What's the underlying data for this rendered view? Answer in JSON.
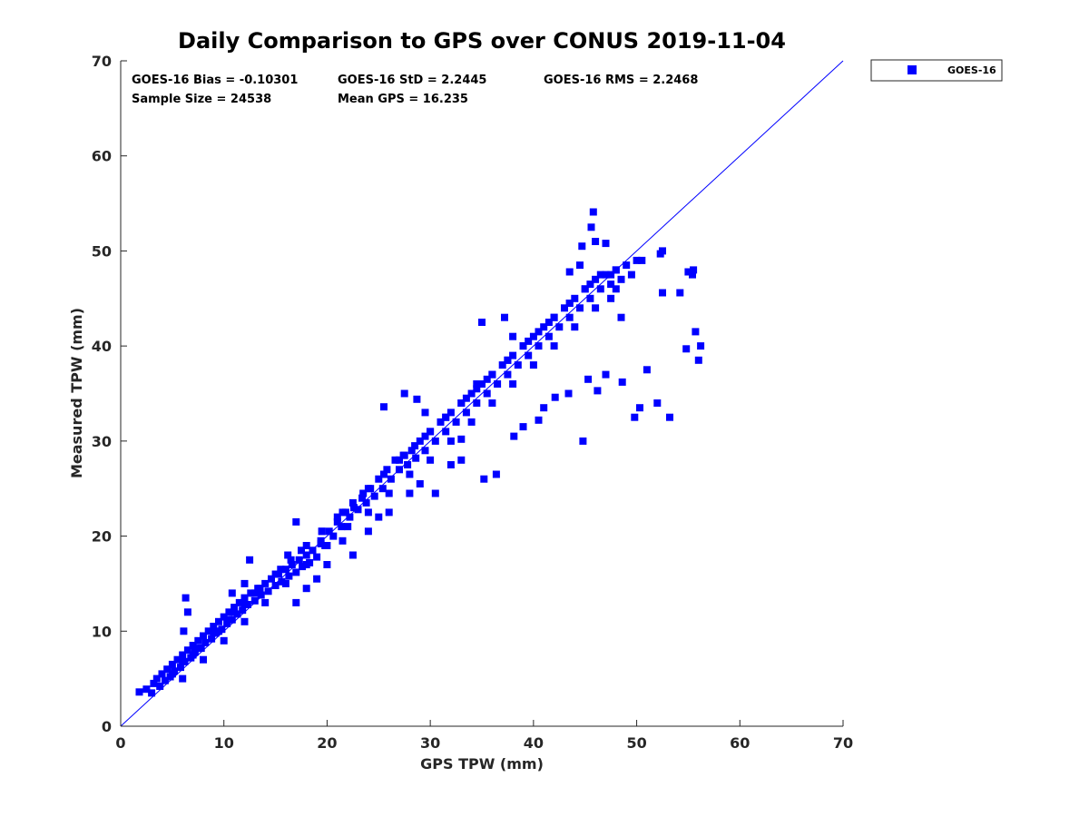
{
  "chart_data": {
    "type": "scatter",
    "title": "Daily Comparison to GPS over CONUS 2019-11-04",
    "xlabel": "GPS TPW (mm)",
    "ylabel": "Measured TPW (mm)",
    "xlim": [
      0,
      70
    ],
    "ylim": [
      0,
      70
    ],
    "xticks": [
      0,
      10,
      20,
      30,
      40,
      50,
      60,
      70
    ],
    "yticks": [
      0,
      10,
      20,
      30,
      40,
      50,
      60,
      70
    ],
    "grid": false,
    "legend": {
      "placement": "outside-top-right",
      "entries": [
        "GOES-16"
      ]
    },
    "reference_line": {
      "from": [
        0,
        0
      ],
      "to": [
        70,
        70
      ],
      "color": "#0000ff",
      "label": "1:1 line"
    },
    "stats": {
      "bias": "GOES-16 Bias = -0.10301",
      "std": "GOES-16 StD = 2.2445",
      "rms": "GOES-16 RMS = 2.2468",
      "sample_size": "Sample Size = 24538",
      "mean_gps": "Mean GPS = 16.235"
    },
    "series": [
      {
        "name": "GOES-16",
        "color": "#0000ff",
        "marker": "square",
        "x": [
          1.8,
          2.5,
          3.0,
          3.2,
          3.5,
          3.8,
          4.0,
          4.3,
          4.5,
          4.8,
          5.0,
          5.2,
          5.5,
          5.8,
          6.0,
          6.2,
          6.5,
          6.8,
          7.0,
          7.2,
          7.5,
          7.8,
          8.0,
          8.2,
          8.5,
          8.8,
          9.0,
          9.2,
          9.5,
          9.8,
          10.0,
          10.3,
          10.5,
          10.8,
          11.0,
          11.3,
          11.5,
          11.8,
          12.0,
          12.3,
          12.6,
          13.0,
          13.3,
          13.6,
          14.0,
          14.3,
          14.6,
          15.0,
          15.3,
          15.6,
          16.0,
          16.3,
          16.6,
          17.0,
          17.3,
          17.6,
          18.0,
          18.3,
          18.6,
          19.0,
          19.4,
          19.8,
          20.2,
          20.6,
          21.0,
          21.4,
          21.8,
          22.2,
          22.6,
          23.0,
          23.4,
          23.8,
          24.2,
          24.6,
          25.0,
          25.4,
          25.8,
          26.2,
          26.6,
          27.0,
          27.4,
          27.8,
          28.2,
          28.6,
          29.0,
          29.5,
          30.0,
          30.5,
          31.0,
          31.5,
          32.0,
          32.5,
          33.0,
          33.5,
          34.0,
          34.5,
          35.0,
          35.5,
          36.0,
          36.5,
          37.0,
          37.5,
          38.0,
          38.5,
          39.0,
          39.5,
          40.0,
          40.5,
          41.0,
          41.5,
          42.0,
          42.5,
          43.0,
          43.5,
          44.0,
          44.5,
          45.0,
          45.5,
          46.0,
          46.5,
          47.0,
          47.5,
          48.0,
          48.5,
          49.0,
          49.5,
          50.0,
          5.0,
          6.0,
          7.5,
          9.0,
          10.5,
          12.0,
          13.5,
          15.0,
          16.5,
          18.0,
          19.5,
          21.0,
          22.5,
          24.0,
          25.5,
          27.0,
          28.5,
          30.0,
          31.5,
          33.0,
          34.5,
          36.0,
          37.5,
          39.0,
          40.5,
          42.0,
          43.5,
          45.0,
          46.5,
          48.0,
          6.0,
          8.0,
          10.0,
          12.0,
          14.0,
          16.0,
          18.0,
          20.0,
          22.0,
          24.0,
          26.0,
          28.0,
          30.0,
          32.0,
          34.0,
          36.0,
          38.0,
          40.0,
          42.0,
          44.0,
          46.0,
          48.0,
          7.0,
          9.5,
          11.0,
          13.0,
          15.5,
          17.5,
          19.5,
          21.5,
          23.5,
          25.5,
          27.5,
          29.5,
          31.5,
          33.5,
          35.5,
          37.5,
          39.5,
          41.5,
          43.5,
          45.5,
          47.5,
          6.3,
          6.1,
          6.5,
          10.8,
          12.0,
          12.5,
          19.4,
          17.0,
          16.2,
          25.5,
          27.5,
          28.7,
          29.5,
          33.0,
          34.5,
          35.0,
          37.2,
          38.0,
          40.5,
          43.5,
          44.5,
          45.6,
          46.0,
          45.8,
          44.7,
          47.0,
          47.5,
          48.5,
          50.5,
          52.3,
          52.5,
          55.0,
          55.5,
          55.7,
          56.2,
          54.8,
          56.0,
          55.4,
          54.2,
          52.0,
          50.3,
          49.8,
          53.2,
          52.5,
          51.0,
          48.6,
          47.0,
          46.2,
          45.3,
          44.8,
          43.4,
          42.1,
          41.0,
          39.0,
          38.1,
          36.4,
          35.2,
          33.0,
          32.0,
          30.5,
          29.0,
          28.0,
          26.0,
          25.0,
          24.0,
          22.5,
          21.5,
          20.0,
          19.0,
          18.0,
          17.0
        ],
        "y": [
          3.6,
          3.9,
          3.5,
          4.5,
          5.0,
          4.2,
          5.5,
          4.8,
          6.0,
          5.2,
          6.5,
          5.8,
          7.0,
          6.2,
          7.5,
          6.8,
          8.0,
          7.2,
          8.5,
          7.8,
          9.0,
          8.2,
          9.5,
          8.8,
          10.0,
          9.2,
          10.5,
          9.8,
          11.0,
          10.2,
          11.5,
          10.8,
          12.0,
          11.2,
          12.5,
          11.8,
          13.0,
          12.2,
          13.5,
          12.8,
          14.0,
          13.2,
          14.5,
          13.8,
          15.0,
          14.2,
          15.5,
          14.8,
          16.0,
          15.2,
          16.5,
          15.8,
          17.0,
          16.2,
          17.5,
          16.8,
          18.0,
          17.2,
          18.5,
          17.8,
          19.5,
          19.0,
          20.5,
          20.0,
          21.5,
          21.0,
          22.5,
          22.0,
          23.0,
          22.8,
          24.0,
          23.5,
          25.0,
          24.2,
          26.0,
          25.0,
          27.0,
          26.0,
          28.0,
          27.0,
          28.5,
          27.5,
          29.0,
          28.2,
          30.0,
          29.0,
          31.0,
          30.0,
          32.0,
          31.0,
          33.0,
          32.0,
          34.0,
          33.0,
          35.0,
          34.0,
          36.0,
          35.0,
          37.0,
          36.0,
          38.0,
          37.0,
          39.0,
          38.0,
          40.0,
          39.0,
          41.0,
          40.0,
          42.0,
          41.0,
          43.0,
          42.0,
          44.0,
          43.0,
          45.0,
          44.0,
          46.0,
          45.0,
          47.0,
          46.0,
          47.5,
          46.5,
          48.0,
          47.0,
          48.5,
          47.5,
          49.0,
          5.5,
          6.8,
          8.2,
          9.8,
          11.2,
          12.8,
          14.5,
          16.0,
          17.5,
          19.0,
          20.5,
          22.0,
          23.5,
          25.0,
          26.5,
          28.0,
          29.5,
          31.0,
          32.5,
          34.0,
          35.5,
          37.0,
          38.5,
          40.0,
          41.5,
          43.0,
          44.5,
          46.0,
          47.5,
          48.0,
          5.0,
          7.0,
          9.0,
          11.0,
          13.0,
          15.0,
          17.0,
          19.0,
          21.0,
          22.5,
          24.5,
          26.5,
          28.0,
          30.0,
          32.0,
          34.0,
          36.0,
          38.0,
          40.0,
          42.0,
          44.0,
          46.0,
          7.5,
          10.0,
          12.0,
          14.0,
          16.5,
          18.5,
          20.5,
          22.5,
          24.5,
          26.5,
          28.5,
          30.5,
          32.5,
          34.5,
          36.5,
          38.5,
          40.5,
          42.5,
          44.5,
          46.5,
          47.5,
          13.5,
          10.0,
          12.0,
          14.0,
          15.0,
          17.5,
          19.2,
          21.5,
          18.0,
          33.6,
          35.0,
          34.4,
          33.0,
          30.2,
          36.0,
          42.5,
          43.0,
          41.0,
          32.2,
          47.8,
          48.5,
          52.5,
          51.0,
          54.1,
          50.5,
          50.8,
          45.0,
          43.0,
          49.0,
          49.7,
          50.0,
          47.8,
          48.0,
          41.5,
          40.0,
          39.7,
          38.5,
          47.5,
          45.6,
          34.0,
          33.5,
          32.5,
          32.5,
          45.6,
          37.5,
          36.2,
          37.0,
          35.3,
          36.5,
          30.0,
          35.0,
          34.6,
          33.5,
          31.5,
          30.5,
          26.5,
          26.0,
          28.0,
          27.5,
          24.5,
          25.5,
          24.5,
          22.5,
          22.0,
          20.5,
          18.0,
          19.5,
          17.0,
          15.5,
          14.5,
          13.0
        ]
      }
    ]
  }
}
